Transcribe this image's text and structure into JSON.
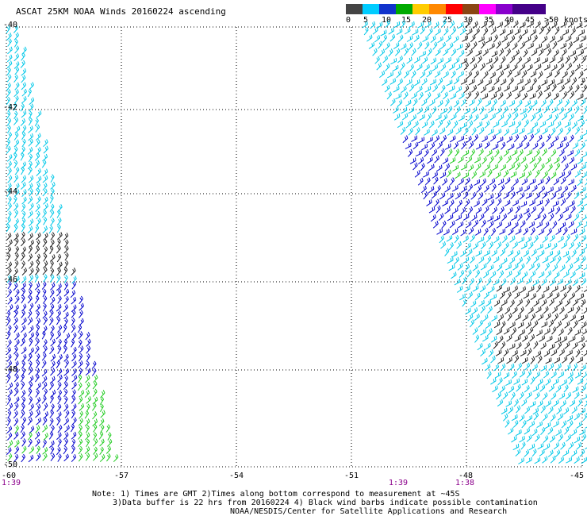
{
  "title": "ASCAT 25KM NOAA Winds 20160224 ascending",
  "legend": {
    "swatches": [
      "#444444",
      "#999999",
      "#00ccff",
      "#00aaee",
      "#1133cc",
      "#0000aa",
      "#00aa00",
      "#44dd44",
      "#ffcc00",
      "#ffee00",
      "#ff8800",
      "#ff5500",
      "#ff0000",
      "#cc2222",
      "#8b4513",
      "#b07040",
      "#ff00ff",
      "#cc00cc",
      "#8800cc",
      "#440088"
    ],
    "labels": [
      "0",
      "5",
      "10",
      "15",
      "20",
      "25",
      "30",
      "35",
      "40",
      "45",
      ">50",
      "knots"
    ]
  },
  "axes": {
    "lat_labels": [
      "-40",
      "-42",
      "-44",
      "-46",
      "-48",
      "-50"
    ],
    "lon_labels": [
      "-60",
      "-57",
      "-54",
      "-51",
      "-48",
      "-45"
    ]
  },
  "pass_times": [
    "1:39",
    "1:39",
    "1:38"
  ],
  "notes": [
    "Note: 1) Times are GMT 2)Times along bottom correspond to measurement at ~45S",
    "3)Data buffer is 22 hrs from 20160224 4) Black wind barbs indicate possible contamination",
    "NOAA/NESDIS/Center for Satellite Applications and Research"
  ],
  "colors": {
    "dark": "#222222",
    "blue": "#0000cc",
    "cyan": "#00c8e8",
    "green": "#22cc22"
  }
}
